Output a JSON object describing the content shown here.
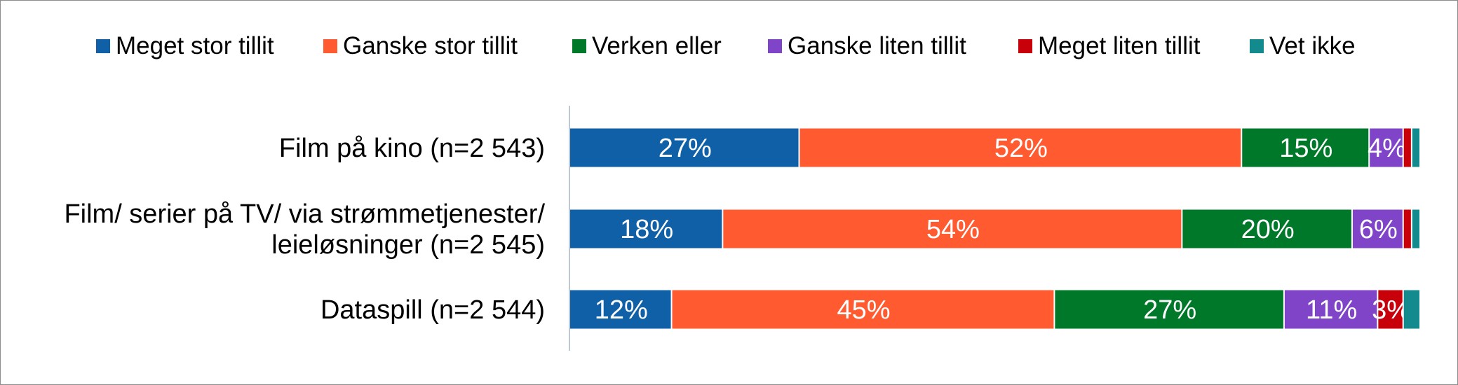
{
  "chart_data": {
    "type": "bar",
    "orientation": "horizontal",
    "stacked": true,
    "percent_stacked": true,
    "title": "",
    "xlabel": "",
    "ylabel": "",
    "legend_position": "top",
    "grid": false,
    "categories": [
      [
        "Film på kino (n=2 543)"
      ],
      [
        "Film/ serier på TV/ via strømmetjenester/",
        "leieløsninger (n=2 545)"
      ],
      [
        "Dataspill (n=2 544)"
      ]
    ],
    "series": [
      {
        "name": "Meget stor tillit",
        "color": "#1060a8",
        "values": [
          27,
          18,
          12
        ],
        "labels": [
          "27%",
          "18%",
          "12%"
        ]
      },
      {
        "name": "Ganske stor tillit",
        "color": "#ff5a30",
        "values": [
          52,
          54,
          45
        ],
        "labels": [
          "52%",
          "54%",
          "45%"
        ]
      },
      {
        "name": "Verken eller",
        "color": "#00782a",
        "values": [
          15,
          20,
          27
        ],
        "labels": [
          "15%",
          "20%",
          "27%"
        ]
      },
      {
        "name": "Ganske liten tillit",
        "color": "#7f44c8",
        "values": [
          4,
          6,
          11
        ],
        "labels": [
          "4%",
          "6%",
          "11%"
        ]
      },
      {
        "name": "Meget liten tillit",
        "color": "#c8000a",
        "values": [
          1,
          1,
          3
        ],
        "labels": [
          "",
          "",
          "3%"
        ]
      },
      {
        "name": "Vet ikke",
        "color": "#138a8e",
        "values": [
          1,
          1,
          2
        ],
        "labels": [
          "",
          "",
          ""
        ]
      }
    ]
  }
}
